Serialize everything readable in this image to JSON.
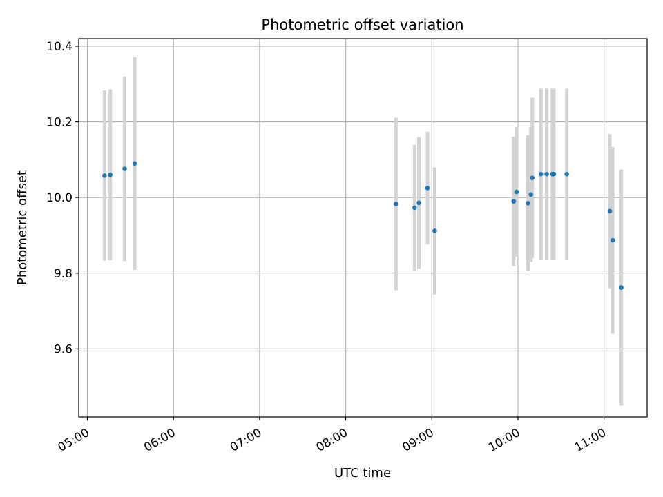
{
  "chart_data": {
    "type": "scatter",
    "title": "Photometric offset variation",
    "xlabel": "UTC time",
    "ylabel": "Photometric offset",
    "x_axis_kind": "time (HH:MM)",
    "xlim": [
      "04:54",
      "11:30"
    ],
    "ylim": [
      9.42,
      10.42
    ],
    "x_ticks": [
      "05:00",
      "06:00",
      "07:00",
      "08:00",
      "09:00",
      "10:00",
      "11:00"
    ],
    "y_ticks": [
      9.6,
      9.8,
      10.0,
      10.2,
      10.4
    ],
    "y_tick_labels": [
      "9.6",
      "9.8",
      "10.0",
      "10.2",
      "10.4"
    ],
    "grid": true,
    "colors": {
      "point": "#1f77b4",
      "errorbar": "#d3d3d3",
      "grid": "#b0b0b0",
      "axes": "#000000"
    },
    "series": [
      {
        "points": [
          {
            "x": "05:12",
            "y": 10.058,
            "err": 0.225
          },
          {
            "x": "05:16",
            "y": 10.06,
            "err": 0.226
          },
          {
            "x": "05:26",
            "y": 10.076,
            "err": 0.244
          },
          {
            "x": "05:33",
            "y": 10.09,
            "err": 0.281
          },
          {
            "x": "08:35",
            "y": 9.983,
            "err": 0.228
          },
          {
            "x": "08:48",
            "y": 9.973,
            "err": 0.166
          },
          {
            "x": "08:51",
            "y": 9.986,
            "err": 0.174
          },
          {
            "x": "08:57",
            "y": 10.025,
            "err": 0.149
          },
          {
            "x": "09:02",
            "y": 9.912,
            "err": 0.168
          },
          {
            "x": "09:57",
            "y": 9.99,
            "err": 0.171
          },
          {
            "x": "09:59",
            "y": 10.015,
            "err": 0.171
          },
          {
            "x": "10:07",
            "y": 9.985,
            "err": 0.18
          },
          {
            "x": "10:09",
            "y": 10.008,
            "err": 0.178
          },
          {
            "x": "10:10",
            "y": 10.052,
            "err": 0.212
          },
          {
            "x": "10:16",
            "y": 10.062,
            "err": 0.226
          },
          {
            "x": "10:20",
            "y": 10.062,
            "err": 0.226
          },
          {
            "x": "10:24",
            "y": 10.062,
            "err": 0.226
          },
          {
            "x": "10:25",
            "y": 10.062,
            "err": 0.226
          },
          {
            "x": "10:34",
            "y": 10.062,
            "err": 0.226
          },
          {
            "x": "11:04",
            "y": 9.964,
            "err": 0.204
          },
          {
            "x": "11:06",
            "y": 9.887,
            "err": 0.247
          },
          {
            "x": "11:12",
            "y": 9.762,
            "err": 0.312
          }
        ]
      }
    ]
  }
}
